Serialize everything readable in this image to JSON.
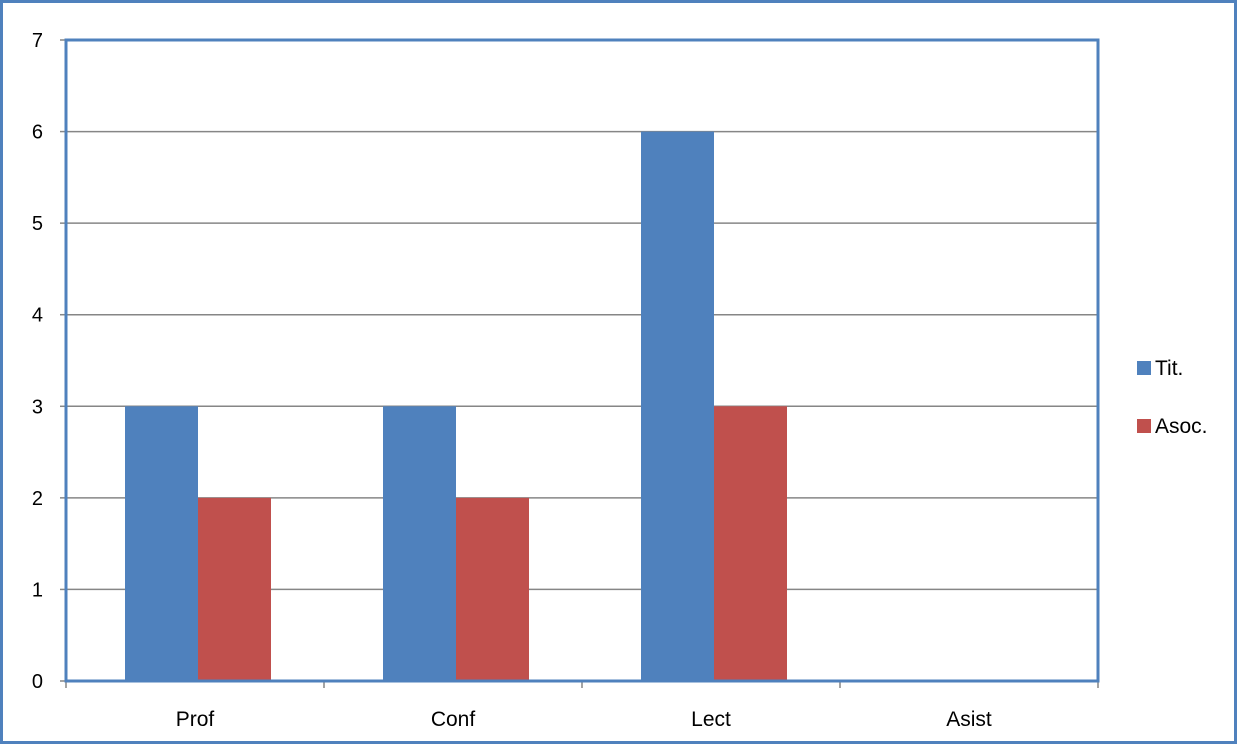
{
  "chart_data": {
    "type": "bar",
    "title": "",
    "xlabel": "",
    "ylabel": "",
    "categories": [
      "Prof",
      "Conf",
      "Lect",
      "Asist"
    ],
    "series": [
      {
        "name": "Tit.",
        "values": [
          3,
          3,
          6,
          0
        ],
        "color": "#4f81bd"
      },
      {
        "name": "Asoc.",
        "values": [
          2,
          2,
          3,
          0
        ],
        "color": "#c0504d"
      }
    ],
    "ylim": [
      0,
      7
    ],
    "yticks": [
      "0",
      "1",
      "2",
      "3",
      "4",
      "5",
      "6",
      "7"
    ],
    "grid": true,
    "legend_position": "right",
    "plot_border_color": "#4f81bd",
    "gridline_color": "#868686",
    "axis_color": "#868686"
  }
}
